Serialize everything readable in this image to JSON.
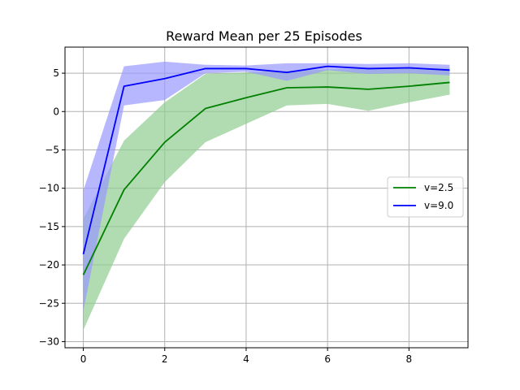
{
  "chart_data": {
    "type": "line",
    "title": "Reward Mean per 25 Episodes",
    "xlabel": "",
    "ylabel": "",
    "xlim": [
      -0.45,
      9.45
    ],
    "ylim": [
      -30.8,
      8.4
    ],
    "xticks": [
      0,
      2,
      4,
      6,
      8
    ],
    "yticks": [
      -30,
      -25,
      -20,
      -15,
      -10,
      -5,
      0,
      5
    ],
    "grid": true,
    "legend_position": "center-right",
    "x": [
      0,
      1,
      2,
      3,
      4,
      5,
      6,
      7,
      8,
      9
    ],
    "series": [
      {
        "name": "v=2.5",
        "color": "#008000",
        "band_color": "#90cc90",
        "values": [
          -21.3,
          -10.2,
          -4.0,
          0.4,
          1.8,
          3.1,
          3.2,
          2.9,
          3.3,
          3.8
        ],
        "lower": [
          -28.5,
          -16.6,
          -9.2,
          -4.0,
          -1.6,
          0.8,
          1.0,
          0.1,
          1.2,
          2.2
        ],
        "upper": [
          -14.0,
          -3.8,
          1.2,
          4.9,
          5.1,
          5.3,
          5.5,
          5.6,
          5.6,
          5.7
        ]
      },
      {
        "name": "v=9.0",
        "color": "#0000ff",
        "band_color": "#9999ff",
        "values": [
          -18.6,
          3.3,
          4.3,
          5.6,
          5.6,
          5.1,
          5.9,
          5.6,
          5.7,
          5.4
        ],
        "lower": [
          -26.0,
          0.8,
          1.5,
          5.0,
          5.2,
          4.0,
          5.4,
          4.9,
          5.0,
          4.7
        ],
        "upper": [
          -10.3,
          5.9,
          6.5,
          6.1,
          6.0,
          6.3,
          6.3,
          6.2,
          6.3,
          6.1
        ]
      }
    ]
  }
}
